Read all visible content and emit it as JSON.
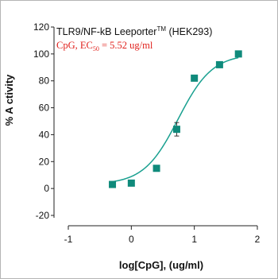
{
  "chart_data": {
    "type": "scatter",
    "title": "TLR9/NF-kB Leeporter",
    "title_tm": "TM",
    "title_cell": " (HEK293)",
    "subtitle_prefix": "CpG, EC",
    "subtitle_sub": "50",
    "subtitle_suffix": " = 5.52 ug/ml",
    "xlabel": "log[CpG], (ug/ml)",
    "ylabel": "% A ctivity",
    "xlim": [
      -1,
      2
    ],
    "ylim": [
      -25,
      125
    ],
    "x_ticks": [
      -1,
      0,
      1,
      2
    ],
    "y_ticks": [
      -20,
      0,
      20,
      40,
      60,
      80,
      100,
      120
    ],
    "grid": false,
    "series": [
      {
        "color": "#0f8a7b",
        "marker": "square",
        "x": [
          -0.3,
          0.0,
          0.4,
          0.72,
          1.0,
          1.4,
          1.7
        ],
        "y": [
          3,
          4,
          15,
          44,
          82,
          92,
          100
        ],
        "error": [
          0,
          0,
          0,
          5,
          0,
          0,
          0
        ]
      }
    ],
    "fit": {
      "type": "4PL",
      "color": "#19a090",
      "bottom": 3,
      "top": 100,
      "log_ec50": 0.742,
      "hill": 1.6
    }
  }
}
